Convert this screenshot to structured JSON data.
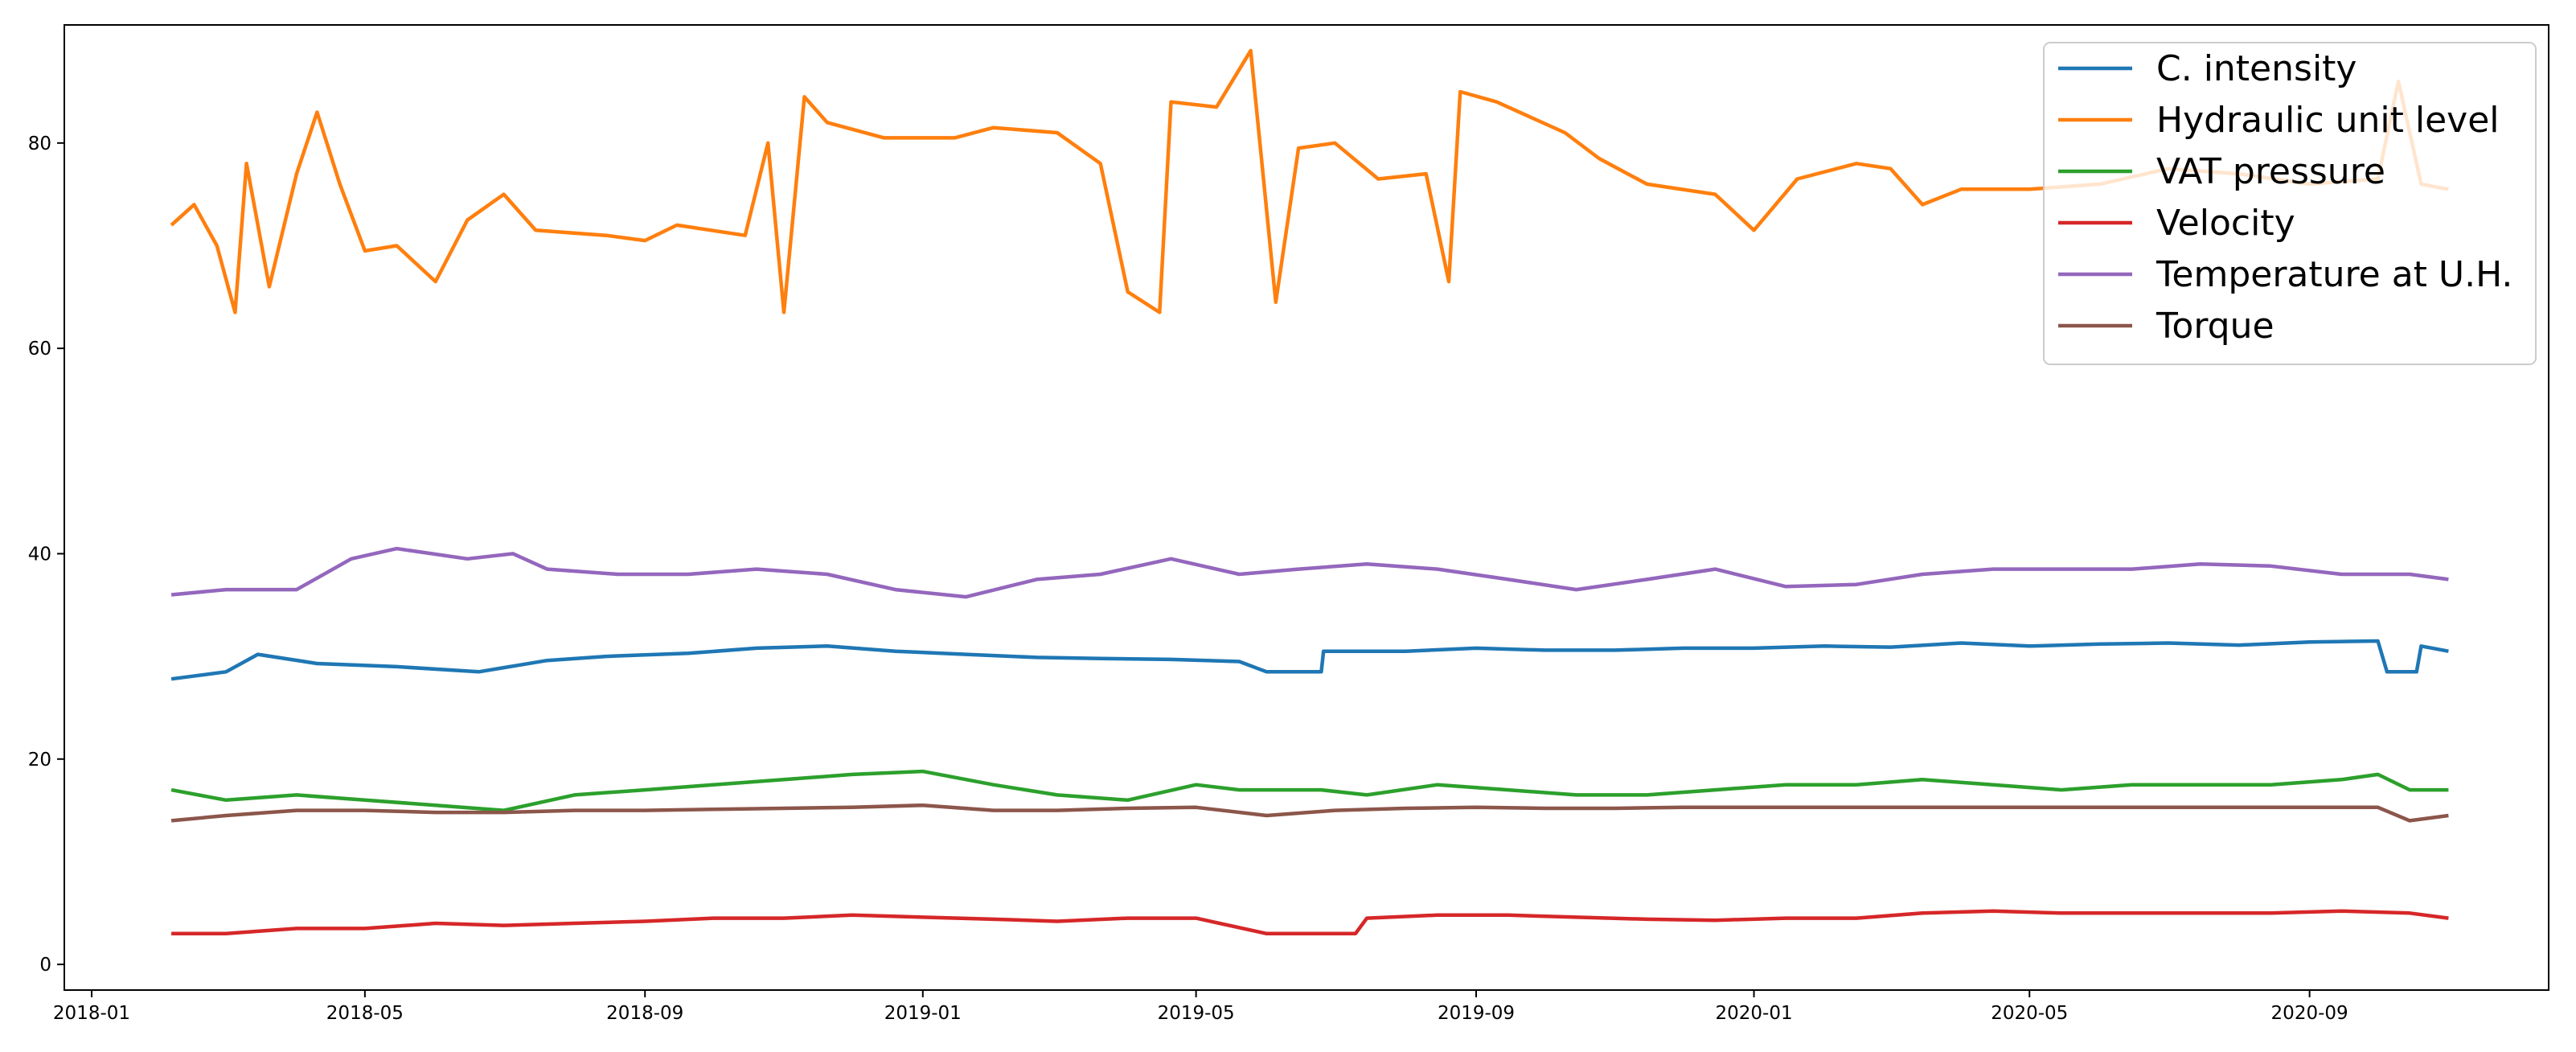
{
  "chart_data": {
    "type": "line",
    "title": "",
    "xlabel": "",
    "ylabel": "",
    "x_ticks": [
      "2018-01",
      "2018-05",
      "2018-09",
      "2019-01",
      "2019-05",
      "2019-09",
      "2020-01",
      "2020-05",
      "2020-09"
    ],
    "y_ticks": [
      "0",
      "20",
      "40",
      "60",
      "80"
    ],
    "xlim": [
      "2017-12-20",
      "2020-12-15"
    ],
    "ylim": [
      -2.5,
      91.5
    ],
    "grid": false,
    "legend_position": "top-right",
    "series": [
      {
        "name": "C. intensity",
        "color": "#1f77b4",
        "points": [
          [
            "2018-02-05",
            27.8
          ],
          [
            "2018-03-01",
            28.5
          ],
          [
            "2018-03-15",
            30.2
          ],
          [
            "2018-04-10",
            29.3
          ],
          [
            "2018-05-15",
            29.0
          ],
          [
            "2018-06-20",
            28.5
          ],
          [
            "2018-07-20",
            29.6
          ],
          [
            "2018-08-15",
            30.0
          ],
          [
            "2018-09-20",
            30.3
          ],
          [
            "2018-10-20",
            30.8
          ],
          [
            "2018-11-20",
            31.0
          ],
          [
            "2018-12-20",
            30.5
          ],
          [
            "2019-01-20",
            30.2
          ],
          [
            "2019-02-20",
            29.9
          ],
          [
            "2019-03-20",
            29.8
          ],
          [
            "2019-04-20",
            29.7
          ],
          [
            "2019-05-20",
            29.5
          ],
          [
            "2019-06-01",
            28.5
          ],
          [
            "2019-06-25",
            28.5
          ],
          [
            "2019-06-26",
            30.5
          ],
          [
            "2019-08-01",
            30.5
          ],
          [
            "2019-09-01",
            30.8
          ],
          [
            "2019-10-01",
            30.6
          ],
          [
            "2019-11-01",
            30.6
          ],
          [
            "2019-12-01",
            30.8
          ],
          [
            "2020-01-01",
            30.8
          ],
          [
            "2020-02-01",
            31.0
          ],
          [
            "2020-03-01",
            30.9
          ],
          [
            "2020-04-01",
            31.3
          ],
          [
            "2020-05-01",
            31.0
          ],
          [
            "2020-06-01",
            31.2
          ],
          [
            "2020-07-01",
            31.3
          ],
          [
            "2020-08-01",
            31.1
          ],
          [
            "2020-09-01",
            31.4
          ],
          [
            "2020-10-01",
            31.5
          ],
          [
            "2020-10-05",
            28.5
          ],
          [
            "2020-10-18",
            28.5
          ],
          [
            "2020-10-20",
            31.0
          ],
          [
            "2020-11-01",
            30.5
          ]
        ]
      },
      {
        "name": "Hydraulic unit level",
        "color": "#ff7f0e",
        "points": [
          [
            "2018-02-05",
            72.0
          ],
          [
            "2018-02-15",
            74.0
          ],
          [
            "2018-02-25",
            70.0
          ],
          [
            "2018-03-05",
            63.5
          ],
          [
            "2018-03-10",
            78.0
          ],
          [
            "2018-03-20",
            66.0
          ],
          [
            "2018-04-01",
            77.0
          ],
          [
            "2018-04-10",
            83.0
          ],
          [
            "2018-04-20",
            76.0
          ],
          [
            "2018-05-01",
            69.5
          ],
          [
            "2018-05-15",
            70.0
          ],
          [
            "2018-06-01",
            66.5
          ],
          [
            "2018-06-15",
            72.5
          ],
          [
            "2018-07-01",
            75.0
          ],
          [
            "2018-07-15",
            71.5
          ],
          [
            "2018-08-15",
            71.0
          ],
          [
            "2018-09-01",
            70.5
          ],
          [
            "2018-09-15",
            72.0
          ],
          [
            "2018-10-15",
            71.0
          ],
          [
            "2018-10-25",
            80.0
          ],
          [
            "2018-11-01",
            63.5
          ],
          [
            "2018-11-10",
            84.5
          ],
          [
            "2018-11-20",
            82.0
          ],
          [
            "2018-12-15",
            80.5
          ],
          [
            "2019-01-15",
            80.5
          ],
          [
            "2019-02-01",
            81.5
          ],
          [
            "2019-03-01",
            81.0
          ],
          [
            "2019-03-20",
            78.0
          ],
          [
            "2019-04-01",
            65.5
          ],
          [
            "2019-04-15",
            63.5
          ],
          [
            "2019-04-20",
            84.0
          ],
          [
            "2019-05-10",
            83.5
          ],
          [
            "2019-05-25",
            89.0
          ],
          [
            "2019-06-05",
            64.5
          ],
          [
            "2019-06-15",
            79.5
          ],
          [
            "2019-07-01",
            80.0
          ],
          [
            "2019-07-20",
            76.5
          ],
          [
            "2019-08-10",
            77.0
          ],
          [
            "2019-08-20",
            66.5
          ],
          [
            "2019-08-25",
            85.0
          ],
          [
            "2019-09-10",
            84.0
          ],
          [
            "2019-10-10",
            81.0
          ],
          [
            "2019-10-25",
            78.5
          ],
          [
            "2019-11-15",
            76.0
          ],
          [
            "2019-12-15",
            75.0
          ],
          [
            "2020-01-01",
            71.5
          ],
          [
            "2020-01-20",
            76.5
          ],
          [
            "2020-02-15",
            78.0
          ],
          [
            "2020-03-01",
            77.5
          ],
          [
            "2020-03-15",
            74.0
          ],
          [
            "2020-04-01",
            75.5
          ],
          [
            "2020-05-01",
            75.5
          ],
          [
            "2020-06-01",
            76.0
          ],
          [
            "2020-07-01",
            77.5
          ],
          [
            "2020-08-01",
            77.0
          ],
          [
            "2020-09-01",
            76.0
          ],
          [
            "2020-10-01",
            76.5
          ],
          [
            "2020-10-10",
            86.0
          ],
          [
            "2020-10-20",
            76.0
          ],
          [
            "2020-11-01",
            75.5
          ]
        ]
      },
      {
        "name": "VAT pressure",
        "color": "#2ca02c",
        "points": [
          [
            "2018-02-05",
            17.0
          ],
          [
            "2018-03-01",
            16.0
          ],
          [
            "2018-04-01",
            16.5
          ],
          [
            "2018-05-01",
            16.0
          ],
          [
            "2018-06-01",
            15.5
          ],
          [
            "2018-07-01",
            15.0
          ],
          [
            "2018-08-01",
            16.5
          ],
          [
            "2018-09-01",
            17.0
          ],
          [
            "2018-10-01",
            17.5
          ],
          [
            "2018-11-01",
            18.0
          ],
          [
            "2018-12-01",
            18.5
          ],
          [
            "2019-01-01",
            18.8
          ],
          [
            "2019-02-01",
            17.5
          ],
          [
            "2019-03-01",
            16.5
          ],
          [
            "2019-04-01",
            16.0
          ],
          [
            "2019-05-01",
            17.5
          ],
          [
            "2019-05-20",
            17.0
          ],
          [
            "2019-06-01",
            17.0
          ],
          [
            "2019-06-25",
            17.0
          ],
          [
            "2019-07-15",
            16.5
          ],
          [
            "2019-08-15",
            17.5
          ],
          [
            "2019-09-15",
            17.0
          ],
          [
            "2019-10-15",
            16.5
          ],
          [
            "2019-11-15",
            16.5
          ],
          [
            "2019-12-15",
            17.0
          ],
          [
            "2020-01-15",
            17.5
          ],
          [
            "2020-02-15",
            17.5
          ],
          [
            "2020-03-15",
            18.0
          ],
          [
            "2020-04-15",
            17.5
          ],
          [
            "2020-05-15",
            17.0
          ],
          [
            "2020-06-15",
            17.5
          ],
          [
            "2020-07-15",
            17.5
          ],
          [
            "2020-08-15",
            17.5
          ],
          [
            "2020-09-15",
            18.0
          ],
          [
            "2020-10-01",
            18.5
          ],
          [
            "2020-10-15",
            17.0
          ],
          [
            "2020-11-01",
            17.0
          ]
        ]
      },
      {
        "name": "Velocity",
        "color": "#d62728",
        "points": [
          [
            "2018-02-05",
            3.0
          ],
          [
            "2018-03-01",
            3.0
          ],
          [
            "2018-04-01",
            3.5
          ],
          [
            "2018-05-01",
            3.5
          ],
          [
            "2018-06-01",
            4.0
          ],
          [
            "2018-07-01",
            3.8
          ],
          [
            "2018-08-01",
            4.0
          ],
          [
            "2018-09-01",
            4.2
          ],
          [
            "2018-10-01",
            4.5
          ],
          [
            "2018-11-01",
            4.5
          ],
          [
            "2018-12-01",
            4.8
          ],
          [
            "2019-01-01",
            4.6
          ],
          [
            "2019-02-01",
            4.4
          ],
          [
            "2019-03-01",
            4.2
          ],
          [
            "2019-04-01",
            4.5
          ],
          [
            "2019-05-01",
            4.5
          ],
          [
            "2019-06-01",
            3.0
          ],
          [
            "2019-07-10",
            3.0
          ],
          [
            "2019-07-15",
            4.5
          ],
          [
            "2019-08-15",
            4.8
          ],
          [
            "2019-09-15",
            4.8
          ],
          [
            "2019-10-15",
            4.6
          ],
          [
            "2019-11-15",
            4.4
          ],
          [
            "2019-12-15",
            4.3
          ],
          [
            "2020-01-15",
            4.5
          ],
          [
            "2020-02-15",
            4.5
          ],
          [
            "2020-03-15",
            5.0
          ],
          [
            "2020-04-15",
            5.2
          ],
          [
            "2020-05-15",
            5.0
          ],
          [
            "2020-06-15",
            5.0
          ],
          [
            "2020-07-15",
            5.0
          ],
          [
            "2020-08-15",
            5.0
          ],
          [
            "2020-09-15",
            5.2
          ],
          [
            "2020-10-15",
            5.0
          ],
          [
            "2020-11-01",
            4.5
          ]
        ]
      },
      {
        "name": "Temperature at U.H.",
        "color": "#9467bd",
        "points": [
          [
            "2018-02-05",
            36.0
          ],
          [
            "2018-03-01",
            36.5
          ],
          [
            "2018-04-01",
            36.5
          ],
          [
            "2018-04-25",
            39.5
          ],
          [
            "2018-05-15",
            40.5
          ],
          [
            "2018-06-15",
            39.5
          ],
          [
            "2018-07-05",
            40.0
          ],
          [
            "2018-07-20",
            38.5
          ],
          [
            "2018-08-20",
            38.0
          ],
          [
            "2018-09-20",
            38.0
          ],
          [
            "2018-10-20",
            38.5
          ],
          [
            "2018-11-20",
            38.0
          ],
          [
            "2018-12-20",
            36.5
          ],
          [
            "2019-01-20",
            35.8
          ],
          [
            "2019-02-20",
            37.5
          ],
          [
            "2019-03-20",
            38.0
          ],
          [
            "2019-04-20",
            39.5
          ],
          [
            "2019-05-20",
            38.0
          ],
          [
            "2019-06-15",
            38.5
          ],
          [
            "2019-07-15",
            39.0
          ],
          [
            "2019-08-15",
            38.5
          ],
          [
            "2019-09-15",
            37.5
          ],
          [
            "2019-10-15",
            36.5
          ],
          [
            "2019-11-15",
            37.5
          ],
          [
            "2019-12-15",
            38.5
          ],
          [
            "2020-01-15",
            36.8
          ],
          [
            "2020-02-15",
            37.0
          ],
          [
            "2020-03-15",
            38.0
          ],
          [
            "2020-04-15",
            38.5
          ],
          [
            "2020-05-15",
            38.5
          ],
          [
            "2020-06-15",
            38.5
          ],
          [
            "2020-07-15",
            39.0
          ],
          [
            "2020-08-15",
            38.8
          ],
          [
            "2020-09-15",
            38.0
          ],
          [
            "2020-10-15",
            38.0
          ],
          [
            "2020-11-01",
            37.5
          ]
        ]
      },
      {
        "name": "Torque",
        "color": "#8c564b",
        "points": [
          [
            "2018-02-05",
            14.0
          ],
          [
            "2018-03-01",
            14.5
          ],
          [
            "2018-04-01",
            15.0
          ],
          [
            "2018-05-01",
            15.0
          ],
          [
            "2018-06-01",
            14.8
          ],
          [
            "2018-07-01",
            14.8
          ],
          [
            "2018-08-01",
            15.0
          ],
          [
            "2018-09-01",
            15.0
          ],
          [
            "2018-10-01",
            15.1
          ],
          [
            "2018-11-01",
            15.2
          ],
          [
            "2018-12-01",
            15.3
          ],
          [
            "2019-01-01",
            15.5
          ],
          [
            "2019-02-01",
            15.0
          ],
          [
            "2019-03-01",
            15.0
          ],
          [
            "2019-04-01",
            15.2
          ],
          [
            "2019-05-01",
            15.3
          ],
          [
            "2019-06-01",
            14.5
          ],
          [
            "2019-07-01",
            15.0
          ],
          [
            "2019-08-01",
            15.2
          ],
          [
            "2019-09-01",
            15.3
          ],
          [
            "2019-10-01",
            15.2
          ],
          [
            "2019-11-01",
            15.2
          ],
          [
            "2019-12-01",
            15.3
          ],
          [
            "2020-01-01",
            15.3
          ],
          [
            "2020-02-01",
            15.3
          ],
          [
            "2020-03-01",
            15.3
          ],
          [
            "2020-04-01",
            15.3
          ],
          [
            "2020-05-01",
            15.3
          ],
          [
            "2020-06-01",
            15.3
          ],
          [
            "2020-07-01",
            15.3
          ],
          [
            "2020-08-01",
            15.3
          ],
          [
            "2020-09-01",
            15.3
          ],
          [
            "2020-10-01",
            15.3
          ],
          [
            "2020-10-15",
            14.0
          ],
          [
            "2020-11-01",
            14.5
          ]
        ]
      }
    ]
  }
}
